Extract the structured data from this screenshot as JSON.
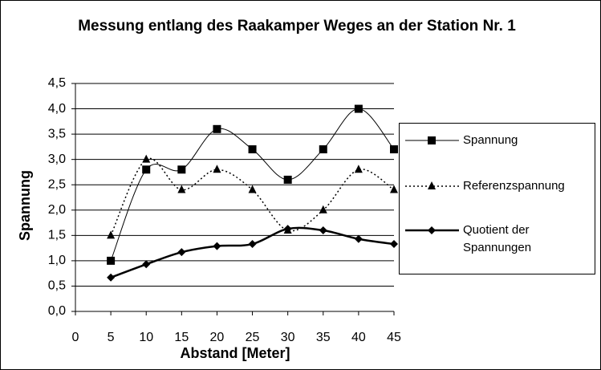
{
  "chart_data": {
    "type": "line",
    "title": "Messung entlang des Raakamper Weges an der Station Nr. 1",
    "x_label": "Abstand [Meter]",
    "y_label": "Spannung",
    "x": [
      5,
      10,
      15,
      20,
      25,
      30,
      35,
      40,
      45
    ],
    "xlim": [
      0,
      45
    ],
    "xticks": [
      0,
      5,
      10,
      15,
      20,
      25,
      30,
      35,
      40,
      45
    ],
    "ylim": [
      0,
      4.5
    ],
    "yticks": [
      {
        "value": 0,
        "label": "0,0"
      },
      {
        "value": 0.5,
        "label": "0,5"
      },
      {
        "value": 1,
        "label": "1,0"
      },
      {
        "value": 1.5,
        "label": "1,5"
      },
      {
        "value": 2,
        "label": "2,0"
      },
      {
        "value": 2.5,
        "label": "2,5"
      },
      {
        "value": 3,
        "label": "3,0"
      },
      {
        "value": 3.5,
        "label": "3,5"
      },
      {
        "value": 4,
        "label": "4,0"
      },
      {
        "value": 4.5,
        "label": "4,5"
      }
    ],
    "grid": true,
    "legend": "right",
    "series": [
      {
        "name": "Spannung",
        "color": "#000000",
        "marker": "square",
        "line_style": "solid",
        "line_width": 1,
        "values": [
          1.0,
          2.8,
          2.8,
          3.6,
          3.2,
          2.6,
          3.2,
          4.0,
          3.2
        ]
      },
      {
        "name": "Referenzspannung",
        "color": "#000000",
        "marker": "triangle",
        "line_style": "dotted",
        "line_width": 1.5,
        "values": [
          1.5,
          3.0,
          2.4,
          2.8,
          2.4,
          1.6,
          2.0,
          2.8,
          2.4
        ]
      },
      {
        "name": "Quotient der Spannungen",
        "color": "#000000",
        "marker": "diamond",
        "line_style": "solid",
        "line_width": 2.5,
        "values": [
          0.67,
          0.93,
          1.17,
          1.29,
          1.33,
          1.63,
          1.6,
          1.43,
          1.33
        ]
      }
    ]
  }
}
